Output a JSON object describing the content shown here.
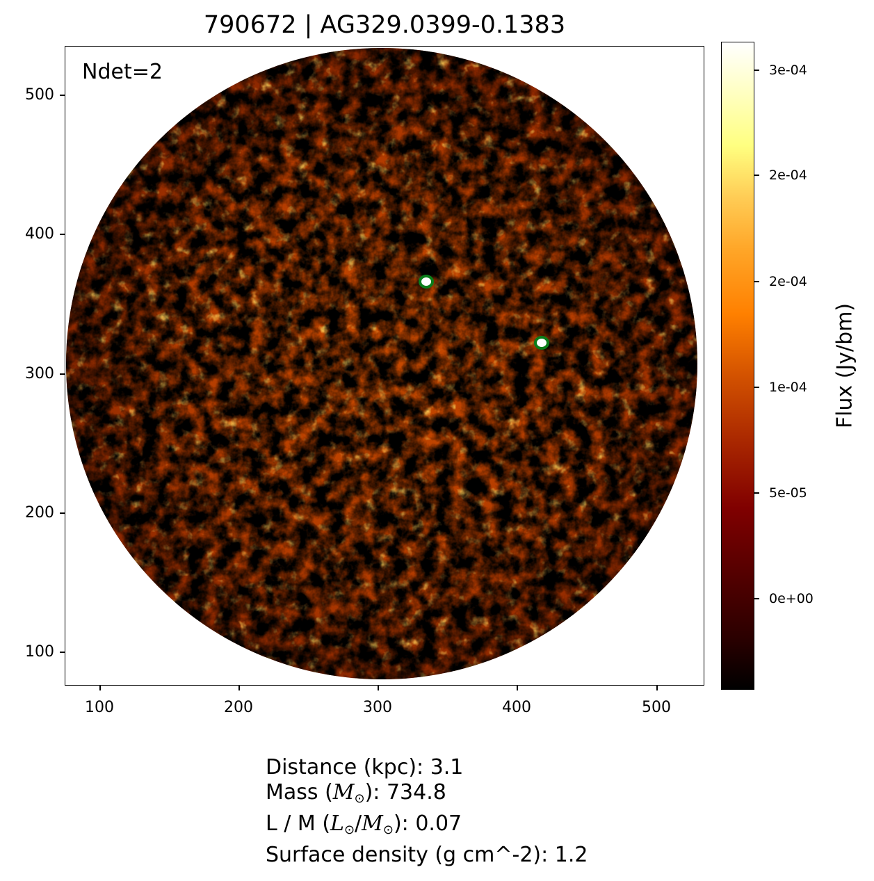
{
  "title": "790672 | AG329.0399-0.1383",
  "annotation": "Ndet=2",
  "image": {
    "description_colormap": "afmhot",
    "accent_colors": {
      "marker": "#0a7d1a",
      "marker_inner": "#ffffff"
    },
    "x_ticks": [
      "100",
      "200",
      "300",
      "400",
      "500"
    ],
    "y_ticks": [
      "500",
      "400",
      "300",
      "200",
      "100"
    ],
    "markers": [
      {
        "x": 334,
        "y": 366
      },
      {
        "x": 417,
        "y": 322
      }
    ]
  },
  "colorbar": {
    "label": "Flux (Jy/bm)",
    "ticks": [
      "3e-04",
      "2e-04",
      "2e-04",
      "1e-04",
      "5e-05",
      "0e+00"
    ]
  },
  "info": {
    "distance_label": "Distance (kpc): ",
    "distance_value": "3.1",
    "mass_label_pre": "Mass (",
    "mass_symbol": "M",
    "mass_label_post": "): ",
    "mass_value": "734.8",
    "lm_label_pre": "L / M (",
    "lm_symbol_l": "L",
    "lm_slash": "/",
    "lm_symbol_m": "M",
    "lm_label_post": "): ",
    "lm_value": "0.07",
    "sd_label": "Surface density (g cm^-2): ",
    "sd_value": "1.2",
    "sun_symbol": "⊙"
  }
}
